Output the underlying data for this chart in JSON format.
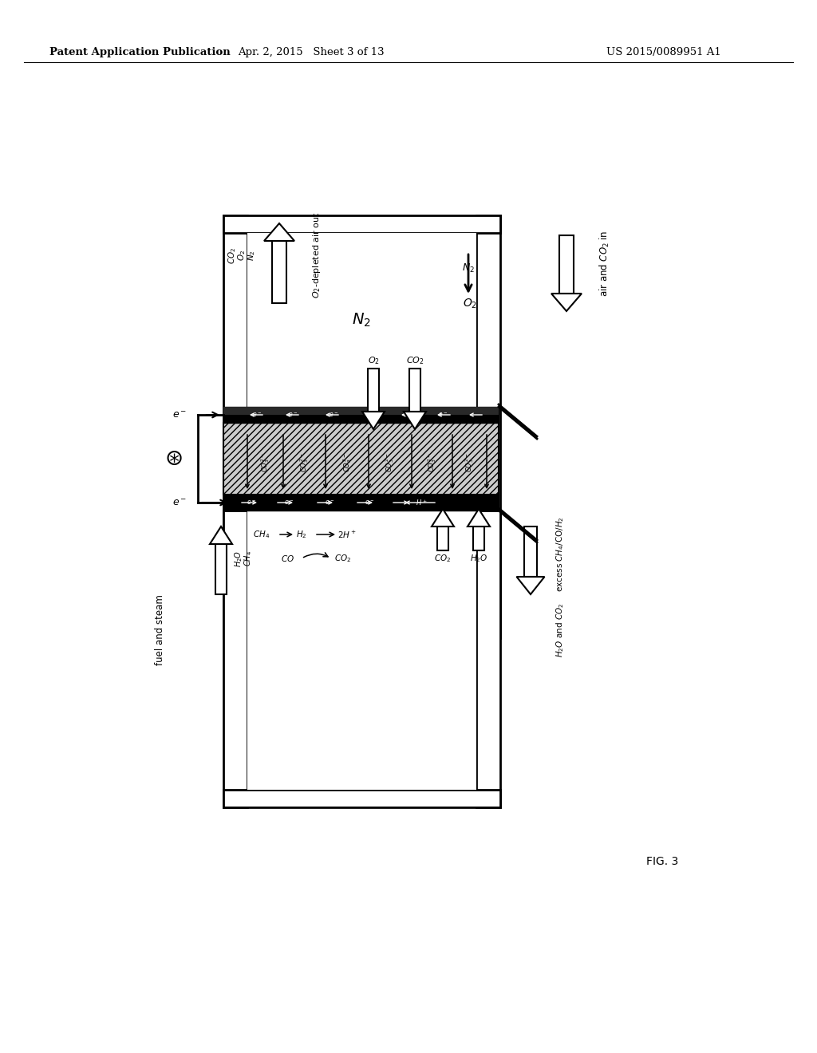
{
  "bg_color": "#ffffff",
  "header_left": "Patent Application Publication",
  "header_mid": "Apr. 2, 2015   Sheet 3 of 13",
  "header_right": "US 2015/0089951 A1",
  "fig_label": "FIG. 3",
  "header_fontsize": 9.5
}
